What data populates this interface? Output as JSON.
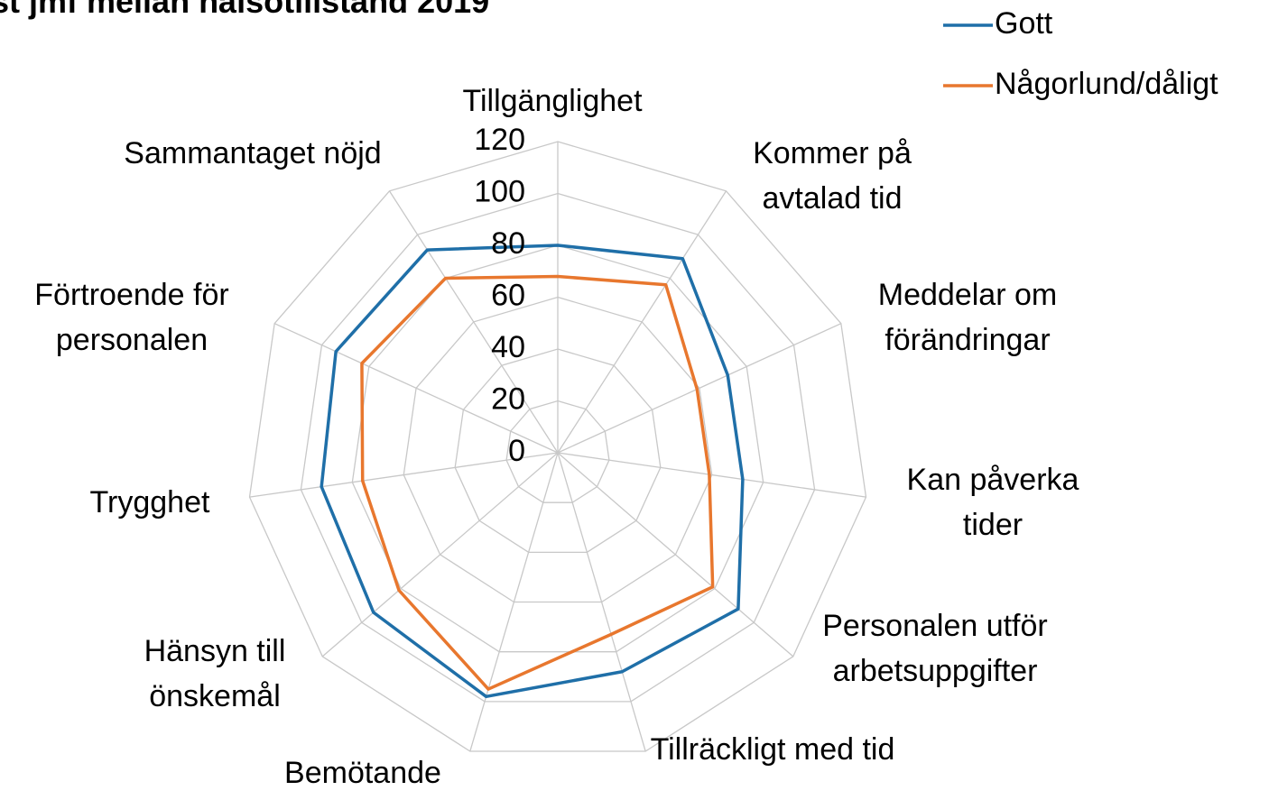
{
  "chart_data": {
    "type": "radar",
    "title": "st jmf mellan hälsotillstånd 2019",
    "categories": [
      "Tillgänglighet",
      "Kommer på avtalad tid",
      "Meddelar om förändringar",
      "Kan påverka tider",
      "Personalen utför arbetsuppgifter",
      "Tillräckligt med tid",
      "Bemötande",
      "Hänsyn till önskemål",
      "Trygghet",
      "Förtroende för personalen",
      "Sammantaget nöjd"
    ],
    "series": [
      {
        "name": "Gott",
        "color": "#1f6fa8",
        "values": [
          80,
          89,
          72,
          72,
          92,
          88,
          98,
          94,
          92,
          94,
          93
        ]
      },
      {
        "name": "Någorlund/dåligt",
        "color": "#e8772e",
        "values": [
          68,
          77,
          59,
          59,
          79,
          73,
          95,
          81,
          76,
          83,
          80
        ]
      }
    ],
    "ylim": [
      0,
      120
    ],
    "yticks": [
      0,
      20,
      40,
      60,
      80,
      100,
      120
    ],
    "grid": true,
    "legend": "top-right"
  }
}
